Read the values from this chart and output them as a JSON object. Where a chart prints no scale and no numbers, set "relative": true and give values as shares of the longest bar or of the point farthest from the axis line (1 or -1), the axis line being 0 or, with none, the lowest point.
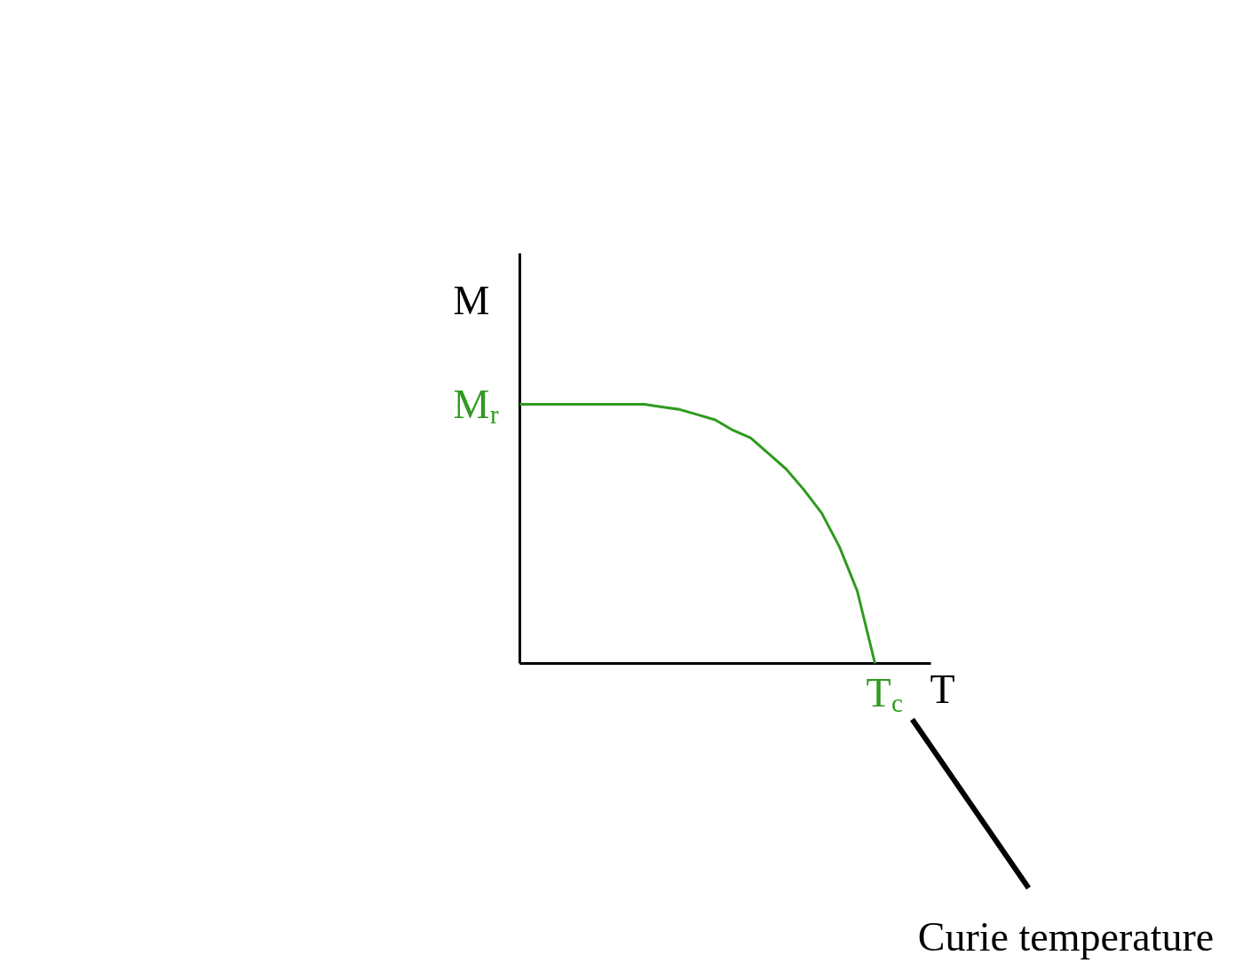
{
  "chart_data": {
    "type": "line",
    "relative": true,
    "xlabel": "T",
    "ylabel": "M",
    "categories": [
      null,
      null,
      null,
      null,
      null,
      null,
      null,
      null,
      null,
      null,
      null,
      null,
      null,
      null,
      null,
      null,
      null,
      null,
      null,
      null,
      null
    ],
    "series": [
      {
        "color": "#2f9a1f",
        "values": [
          1,
          1,
          1,
          1,
          1,
          1,
          1,
          1,
          0.99,
          0.98,
          0.96,
          0.94,
          0.9,
          0.87,
          0.81,
          0.75,
          0.67,
          0.58,
          0.45,
          0.28,
          0
        ]
      }
    ],
    "annotations": [
      "M$_{r}$",
      "T$_{c}$",
      "Curie temperature"
    ]
  }
}
